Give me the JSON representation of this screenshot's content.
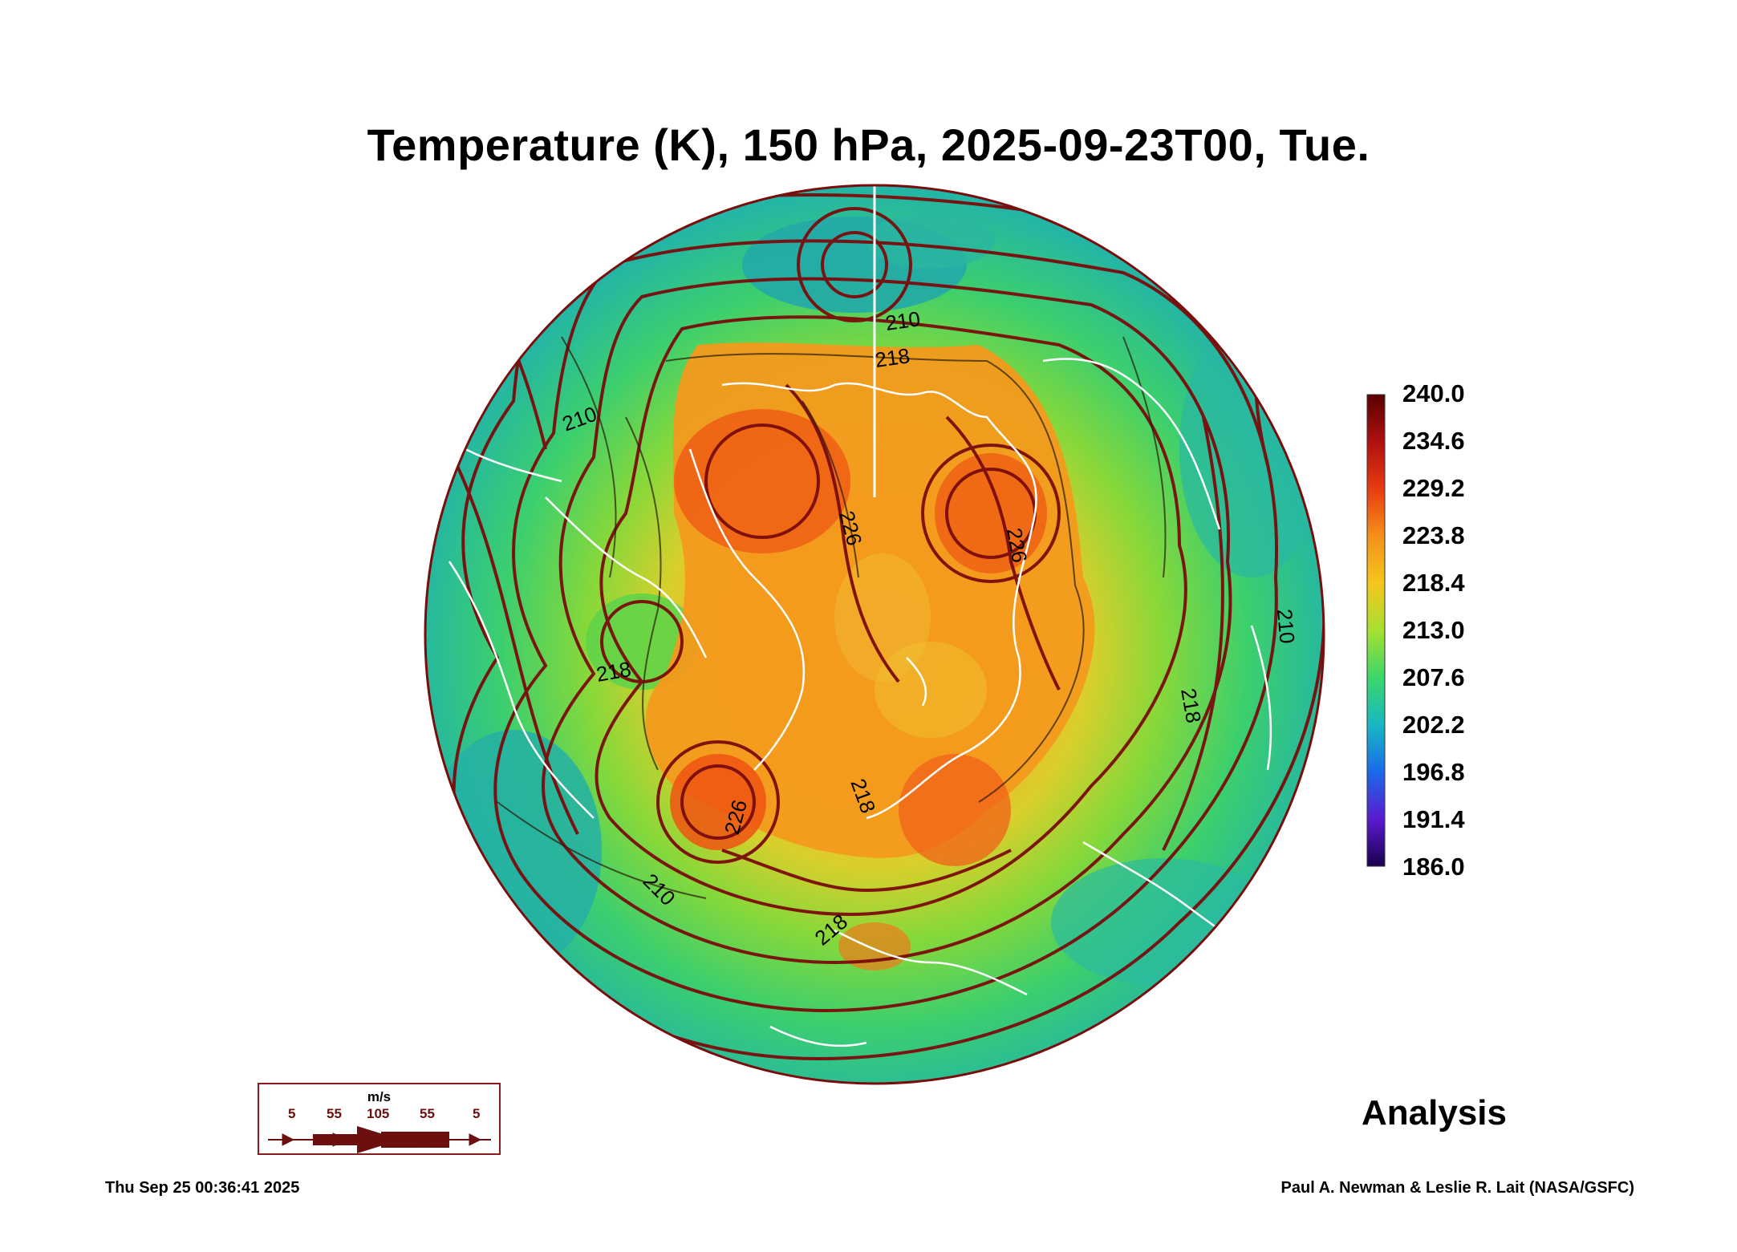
{
  "title": "Temperature (K), 150 hPa, 2025-09-23T00, Tue.",
  "colorbar": {
    "labels": [
      "240.0",
      "234.6",
      "229.2",
      "223.8",
      "218.4",
      "213.0",
      "207.6",
      "202.2",
      "196.8",
      "191.4",
      "186.0"
    ],
    "min": 186.0,
    "max": 240.0
  },
  "contour_labels": [
    "210",
    "218",
    "226",
    "226",
    "226",
    "218",
    "210",
    "218",
    "210",
    "218",
    "210",
    "218"
  ],
  "colors": {
    "cold": "#2db8a6",
    "mid": "#7ed63a",
    "warm": "#f0a020",
    "hot": "#ef5a14",
    "streamline": "#7a0c0c",
    "coastline": "#ffffff"
  },
  "wind_legend": {
    "unit": "m/s",
    "values": [
      "5",
      "55",
      "105",
      "55",
      "5"
    ]
  },
  "label_analysis": "Analysis",
  "timestamp": "Thu Sep 25 00:36:41 2025",
  "credit": "Paul A. Newman & Leslie R. Lait (NASA/GSFC)"
}
